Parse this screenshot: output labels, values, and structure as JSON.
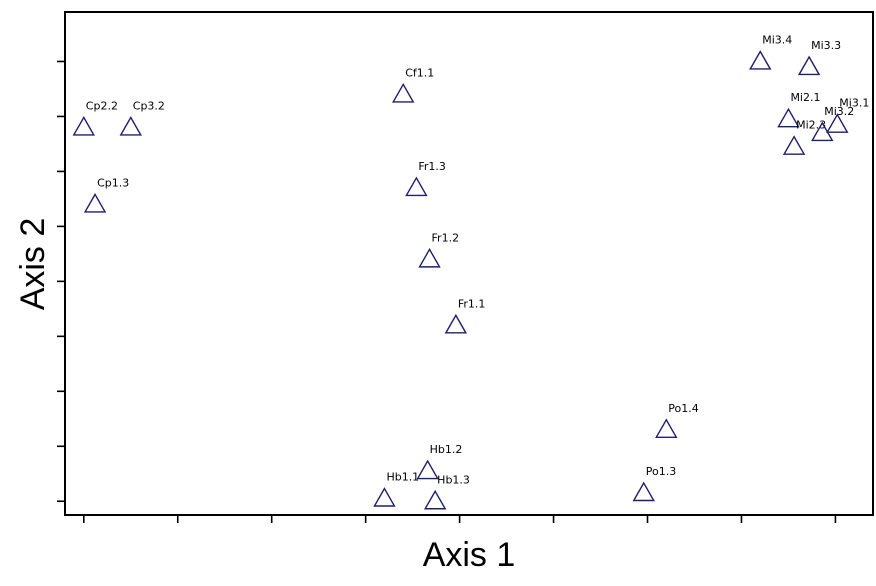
{
  "chart_data": {
    "type": "scatter",
    "title": "",
    "xlabel": "Axis 1",
    "ylabel": "Axis 2",
    "xlim": [
      -0.1,
      4.2
    ],
    "ylim": [
      -0.25,
      8.9
    ],
    "x_ticks": [
      0,
      0.5,
      1,
      1.5,
      2,
      2.5,
      3,
      3.5,
      4
    ],
    "y_ticks": [
      0,
      1,
      2,
      3,
      4,
      5,
      6,
      7,
      8
    ],
    "tick_labels_shown": false,
    "grid": false,
    "legend": "none",
    "marker": "open-triangle",
    "marker_color": "#1f1f6e",
    "points": [
      {
        "label": "Cp2.2",
        "x": 0.0,
        "y": 6.8
      },
      {
        "label": "Cp3.2",
        "x": 0.25,
        "y": 6.8
      },
      {
        "label": "Cp1.3",
        "x": 0.06,
        "y": 5.4
      },
      {
        "label": "Cf1.1",
        "x": 1.7,
        "y": 7.4
      },
      {
        "label": "Fr1.3",
        "x": 1.77,
        "y": 5.7
      },
      {
        "label": "Fr1.2",
        "x": 1.84,
        "y": 4.4
      },
      {
        "label": "Fr1.1",
        "x": 1.98,
        "y": 3.2
      },
      {
        "label": "Hb1.2",
        "x": 1.83,
        "y": 0.55
      },
      {
        "label": "Hb1.1",
        "x": 1.6,
        "y": 0.05
      },
      {
        "label": "Hb1.3",
        "x": 1.87,
        "y": 0.0
      },
      {
        "label": "Po1.4",
        "x": 3.1,
        "y": 1.3
      },
      {
        "label": "Po1.3",
        "x": 2.98,
        "y": 0.15
      },
      {
        "label": "Mi3.4",
        "x": 3.6,
        "y": 8.0
      },
      {
        "label": "Mi3.3",
        "x": 3.86,
        "y": 7.9
      },
      {
        "label": "Mi2.1",
        "x": 3.75,
        "y": 6.95
      },
      {
        "label": "Mi2.3",
        "x": 3.78,
        "y": 6.45
      },
      {
        "label": "Mi3.2",
        "x": 3.93,
        "y": 6.7
      },
      {
        "label": "Mi3.1",
        "x": 4.01,
        "y": 6.85
      }
    ]
  }
}
